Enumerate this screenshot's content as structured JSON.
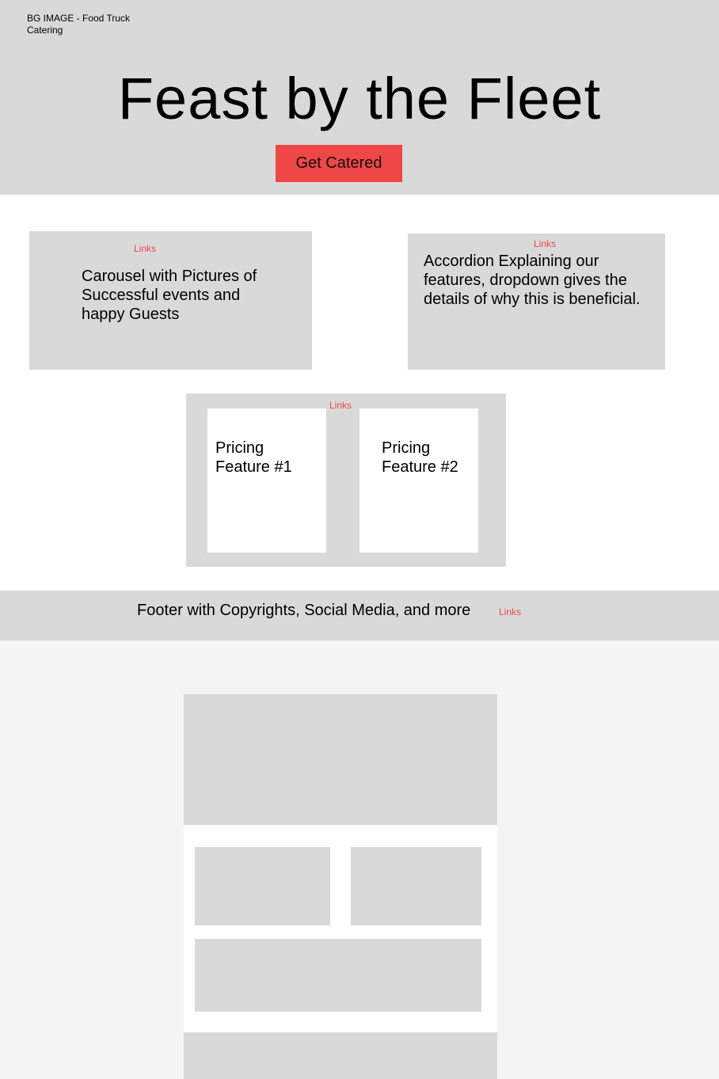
{
  "hero": {
    "bg_note": "BG IMAGE - Food Truck Catering",
    "title": "Feast by the Fleet",
    "cta_label": "Get Catered"
  },
  "carousel": {
    "link_label": "Links",
    "text": "Carousel with Pictures of Successful events and happy Guests"
  },
  "accordion": {
    "link_label": "Links",
    "text": "Accordion Explaining our features, dropdown gives the details of why this is beneficial."
  },
  "pricing": {
    "link_label": "Links",
    "cards": [
      {
        "label": "Pricing Feature #1"
      },
      {
        "label": "Pricing Feature #2"
      }
    ]
  },
  "footer": {
    "text": "Footer with Copyrights, Social Media, and more",
    "link_label": "Links"
  },
  "colors": {
    "placeholder_gray": "#d9d9d9",
    "accent_red": "#ef4646",
    "link_red": "#f04848",
    "canvas_light": "#f4f4f4"
  }
}
